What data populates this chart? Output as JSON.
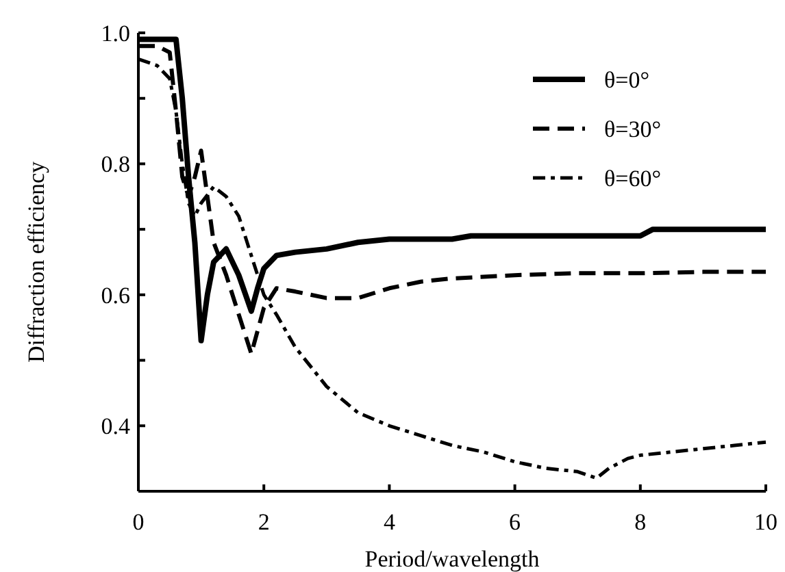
{
  "chart_data": {
    "type": "line",
    "xlabel": "Period/wavelength",
    "ylabel": "Diffraction efficiency",
    "xlim": [
      0,
      10
    ],
    "xticks": [
      0,
      2,
      4,
      6,
      8,
      10
    ],
    "ylim": [
      0.3,
      1.0
    ],
    "yticks": [
      {
        "value": 0.3,
        "label": null
      },
      0.4,
      {
        "value": 0.5,
        "label": null
      },
      0.6,
      {
        "value": 0.7,
        "label": null
      },
      0.8,
      {
        "value": 0.9,
        "label": null
      },
      {
        "value": 1.0,
        "label": "1.0"
      }
    ],
    "grid": false,
    "legend": "top right",
    "series": [
      {
        "name": "θ=0°",
        "color": "#000000",
        "line_style": "solid",
        "x": [
          0,
          0.3,
          0.6,
          0.7,
          0.8,
          0.9,
          1.0,
          1.1,
          1.2,
          1.4,
          1.6,
          1.8,
          1.9,
          2.0,
          2.2,
          2.5,
          3,
          3.5,
          4,
          5,
          5.3,
          6,
          7,
          8,
          8.2,
          9,
          10
        ],
        "values": [
          0.99,
          0.99,
          0.99,
          0.9,
          0.78,
          0.68,
          0.53,
          0.6,
          0.65,
          0.67,
          0.63,
          0.575,
          0.61,
          0.64,
          0.66,
          0.665,
          0.67,
          0.68,
          0.685,
          0.685,
          0.69,
          0.69,
          0.69,
          0.69,
          0.7,
          0.7,
          0.7
        ]
      },
      {
        "name": "θ=30°",
        "color": "#000000",
        "line_style": "dashed",
        "x": [
          0,
          0.3,
          0.5,
          0.6,
          0.7,
          0.8,
          0.9,
          1.0,
          1.1,
          1.2,
          1.4,
          1.6,
          1.8,
          2.0,
          2.2,
          2.5,
          3,
          3.5,
          4,
          4.5,
          5,
          6,
          7,
          8,
          9,
          10
        ],
        "values": [
          0.98,
          0.98,
          0.97,
          0.88,
          0.78,
          0.75,
          0.78,
          0.82,
          0.75,
          0.68,
          0.63,
          0.57,
          0.51,
          0.58,
          0.61,
          0.605,
          0.595,
          0.595,
          0.61,
          0.62,
          0.625,
          0.63,
          0.633,
          0.633,
          0.635,
          0.635
        ]
      },
      {
        "name": "θ=60°",
        "color": "#000000",
        "line_style": "dashdot",
        "x": [
          0,
          0.3,
          0.5,
          0.6,
          0.7,
          0.8,
          0.9,
          1.0,
          1.2,
          1.4,
          1.6,
          1.8,
          2.0,
          2.2,
          2.5,
          3,
          3.5,
          4,
          4.5,
          5,
          5.5,
          6,
          6.5,
          7,
          7.3,
          7.5,
          7.8,
          8,
          8.5,
          9,
          9.5,
          10
        ],
        "values": [
          0.96,
          0.95,
          0.93,
          0.88,
          0.8,
          0.74,
          0.72,
          0.74,
          0.765,
          0.75,
          0.72,
          0.66,
          0.6,
          0.57,
          0.52,
          0.46,
          0.42,
          0.4,
          0.385,
          0.37,
          0.36,
          0.345,
          0.335,
          0.33,
          0.32,
          0.335,
          0.35,
          0.355,
          0.36,
          0.365,
          0.37,
          0.375
        ]
      }
    ]
  }
}
